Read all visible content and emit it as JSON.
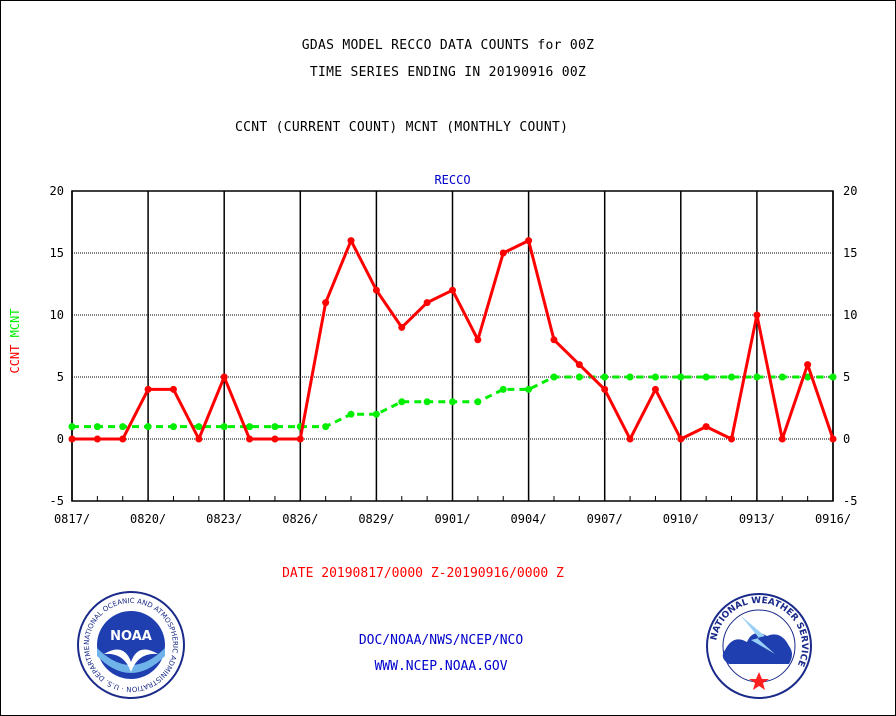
{
  "header": {
    "title_line1": "GDAS MODEL RECCO DATA COUNTS for 00Z",
    "title_line2": "TIME SERIES ENDING IN 20190916 00Z",
    "title_line3": "CCNT (CURRENT COUNT) MCNT (MONTHLY COUNT)"
  },
  "footer": {
    "date_range": "DATE 20190817/0000 Z-20190916/0000 Z",
    "credit": "DOC/NOAA/NWS/NCEP/NCO",
    "website": "WWW.NCEP.NOAA.GOV"
  },
  "logos": {
    "noaa_text": "NOAA",
    "noaa_ring_text": "NATIONAL OCEANIC AND ATMOSPHERIC ADMINISTRATION · U.S. DEPARTMENT OF COMMERCE",
    "nws_ring_text": "NATIONAL WEATHER SERVICE"
  },
  "colors": {
    "ccnt": "#ff0000",
    "mcnt": "#00ee00",
    "plot_label": "#0000cc",
    "grid": "#000000"
  },
  "chart_data": {
    "type": "line",
    "title": "RECCO",
    "ylabel_parts": [
      {
        "text": "CCNT",
        "color": "#ff0000"
      },
      {
        "text": "MCNT",
        "color": "#00ee00"
      }
    ],
    "ylim": [
      -5,
      20
    ],
    "yticks": [
      -5,
      0,
      5,
      10,
      15,
      20
    ],
    "x_tick_labels": [
      "0817/",
      "0820/",
      "0823/",
      "0826/",
      "0829/",
      "0901/",
      "0904/",
      "0907/",
      "0910/",
      "0913/",
      "0916/"
    ],
    "x_tick_days": [
      0,
      3,
      6,
      9,
      12,
      15,
      18,
      21,
      24,
      27,
      30
    ],
    "x_days": [
      0,
      1,
      2,
      3,
      4,
      5,
      6,
      7,
      8,
      9,
      10,
      11,
      12,
      13,
      14,
      15,
      16,
      17,
      18,
      19,
      20,
      21,
      22,
      23,
      24,
      25,
      26,
      27,
      28,
      29,
      30
    ],
    "grid": true,
    "series": [
      {
        "name": "CCNT",
        "style": "solid",
        "values": [
          0,
          0,
          0,
          4,
          4,
          0,
          5,
          0,
          0,
          0,
          11,
          16,
          12,
          9,
          11,
          12,
          8,
          15,
          16,
          8,
          6,
          4,
          0,
          4,
          0,
          1,
          0,
          10,
          0,
          6,
          0
        ]
      },
      {
        "name": "MCNT",
        "style": "dashed",
        "values": [
          1,
          1,
          1,
          1,
          1,
          1,
          1,
          1,
          1,
          1,
          1,
          2,
          2,
          3,
          3,
          3,
          3,
          4,
          4,
          5,
          5,
          5,
          5,
          5,
          5,
          5,
          5,
          5,
          5,
          5,
          5
        ]
      }
    ]
  }
}
